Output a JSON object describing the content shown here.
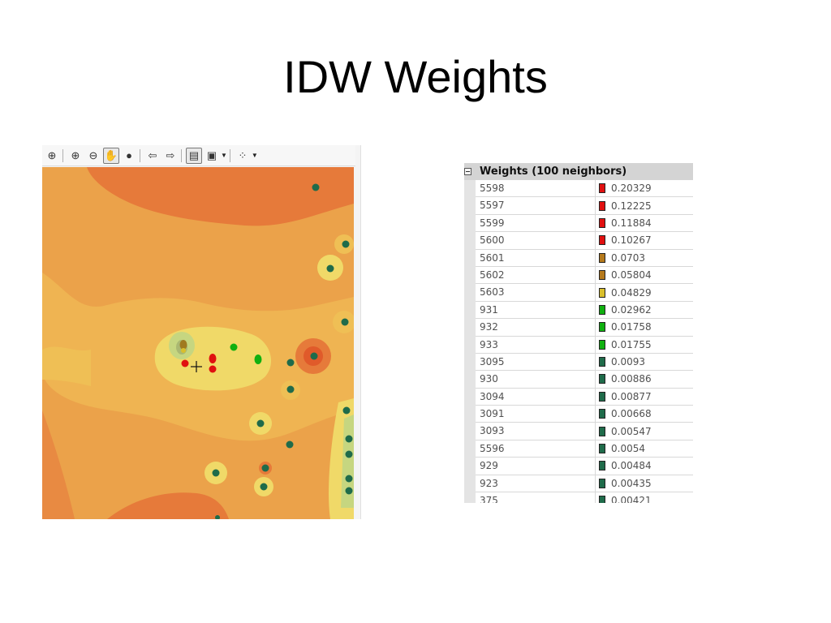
{
  "slide": {
    "title": "IDW Weights"
  },
  "toolbar": {
    "buttons": [
      {
        "name": "full-extent-icon",
        "glyph": "⊕"
      },
      {
        "name": "sep"
      },
      {
        "name": "zoom-in-icon",
        "glyph": "⊕"
      },
      {
        "name": "zoom-out-icon",
        "glyph": "⊖"
      },
      {
        "name": "pan-hand-icon",
        "glyph": "✋",
        "selected": true
      },
      {
        "name": "globe-icon",
        "glyph": "●"
      },
      {
        "name": "sep"
      },
      {
        "name": "back-arrow-icon",
        "glyph": "⇦"
      },
      {
        "name": "forward-arrow-icon",
        "glyph": "⇨"
      },
      {
        "name": "sep"
      },
      {
        "name": "layer-list-icon",
        "glyph": "▤",
        "selected": true
      },
      {
        "name": "map-layers-icon",
        "glyph": "▣",
        "caret": true
      },
      {
        "name": "sep"
      },
      {
        "name": "points-tool-icon",
        "glyph": "⁘",
        "caret": true
      }
    ]
  },
  "map": {
    "colors": {
      "dark_orange": "#e67a3a",
      "mid_orange": "#eba24a",
      "light_orange": "#efbf55",
      "yellow": "#f0d968",
      "pale_green": "#c6d680",
      "red_point": "#e01010",
      "green_point": "#10b010",
      "teal_point": "#1f6b4a",
      "olive_point": "#a07a20"
    }
  },
  "table": {
    "header": "Weights (100 neighbors)",
    "rows": [
      {
        "id": "5598",
        "weight": "0.20329",
        "color": "#e01010"
      },
      {
        "id": "5597",
        "weight": "0.12225",
        "color": "#e01010"
      },
      {
        "id": "5599",
        "weight": "0.11884",
        "color": "#e01010"
      },
      {
        "id": "5600",
        "weight": "0.10267",
        "color": "#e01010"
      },
      {
        "id": "5601",
        "weight": "0.0703",
        "color": "#b5791b"
      },
      {
        "id": "5602",
        "weight": "0.05804",
        "color": "#b5791b"
      },
      {
        "id": "5603",
        "weight": "0.04829",
        "color": "#d9bf2c"
      },
      {
        "id": "931",
        "weight": "0.02962",
        "color": "#10b010"
      },
      {
        "id": "932",
        "weight": "0.01758",
        "color": "#10b010"
      },
      {
        "id": "933",
        "weight": "0.01755",
        "color": "#10b010"
      },
      {
        "id": "3095",
        "weight": "0.0093",
        "color": "#1f6b4a"
      },
      {
        "id": "930",
        "weight": "0.00886",
        "color": "#1f6b4a"
      },
      {
        "id": "3094",
        "weight": "0.00877",
        "color": "#1f6b4a"
      },
      {
        "id": "3091",
        "weight": "0.00668",
        "color": "#1f6b4a"
      },
      {
        "id": "3093",
        "weight": "0.00547",
        "color": "#1f6b4a"
      },
      {
        "id": "5596",
        "weight": "0.0054",
        "color": "#1f6b4a"
      },
      {
        "id": "929",
        "weight": "0.00484",
        "color": "#1f6b4a"
      },
      {
        "id": "923",
        "weight": "0.00435",
        "color": "#1f6b4a"
      },
      {
        "id": "375",
        "weight": "0.00421",
        "color": "#1f6b4a"
      }
    ]
  }
}
